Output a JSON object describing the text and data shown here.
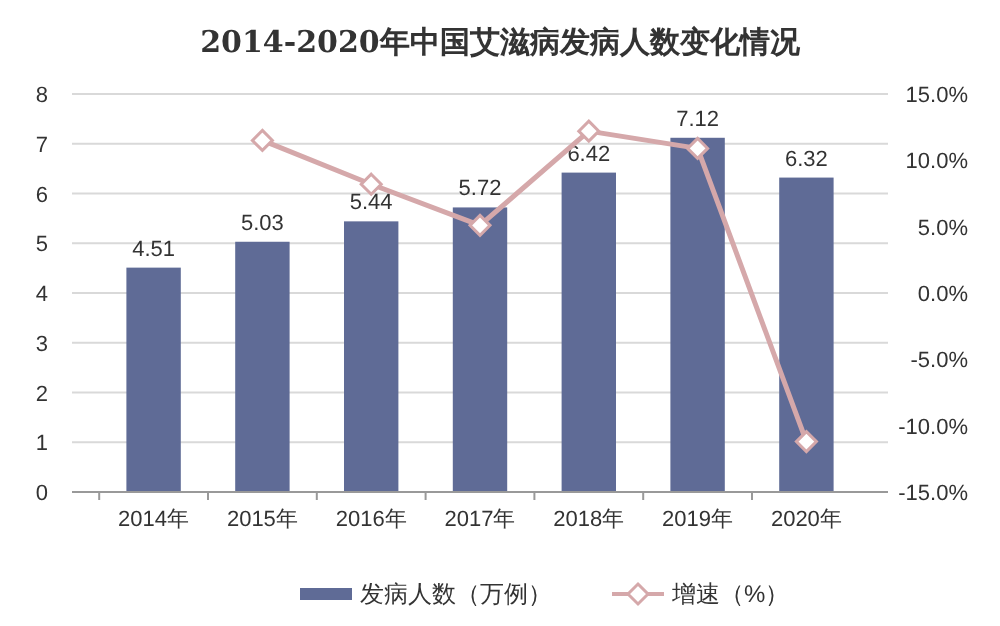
{
  "chart_data": {
    "type": "bar",
    "title": "2014-2020年中国艾滋病发病人数变化情况",
    "categories": [
      "2014年",
      "2015年",
      "2016年",
      "2017年",
      "2018年",
      "2019年",
      "2020年"
    ],
    "series": [
      {
        "name": "发病人数（万例）",
        "color": "#5f6b96",
        "values": [
          4.51,
          5.03,
          5.44,
          5.72,
          6.42,
          7.12,
          6.32
        ],
        "value_labels": [
          "4.51",
          "5.03",
          "5.44",
          "5.72",
          "6.42",
          "7.12",
          "6.32"
        ]
      },
      {
        "name": "增速（%）",
        "type": "line",
        "axis": "y2",
        "color": "#d5a8aa",
        "marker": "diamond",
        "values": [
          null,
          11.5,
          8.2,
          5.1,
          12.2,
          10.9,
          -11.2
        ]
      }
    ],
    "ylim": [
      0,
      8
    ],
    "yticks": [
      0,
      1,
      2,
      3,
      4,
      5,
      6,
      7,
      8
    ],
    "y2lim": [
      -15,
      15
    ],
    "y2ticks": [
      {
        "value": -15,
        "label": "-15.0%"
      },
      {
        "value": -10,
        "label": "-10.0%"
      },
      {
        "value": -5,
        "label": "-5.0%"
      },
      {
        "value": 0,
        "label": "0.0%"
      },
      {
        "value": 5,
        "label": "5.0%"
      },
      {
        "value": 10,
        "label": "10.0%"
      },
      {
        "value": 15,
        "label": "15.0%"
      }
    ],
    "grid": "y",
    "legend": "bottom"
  }
}
